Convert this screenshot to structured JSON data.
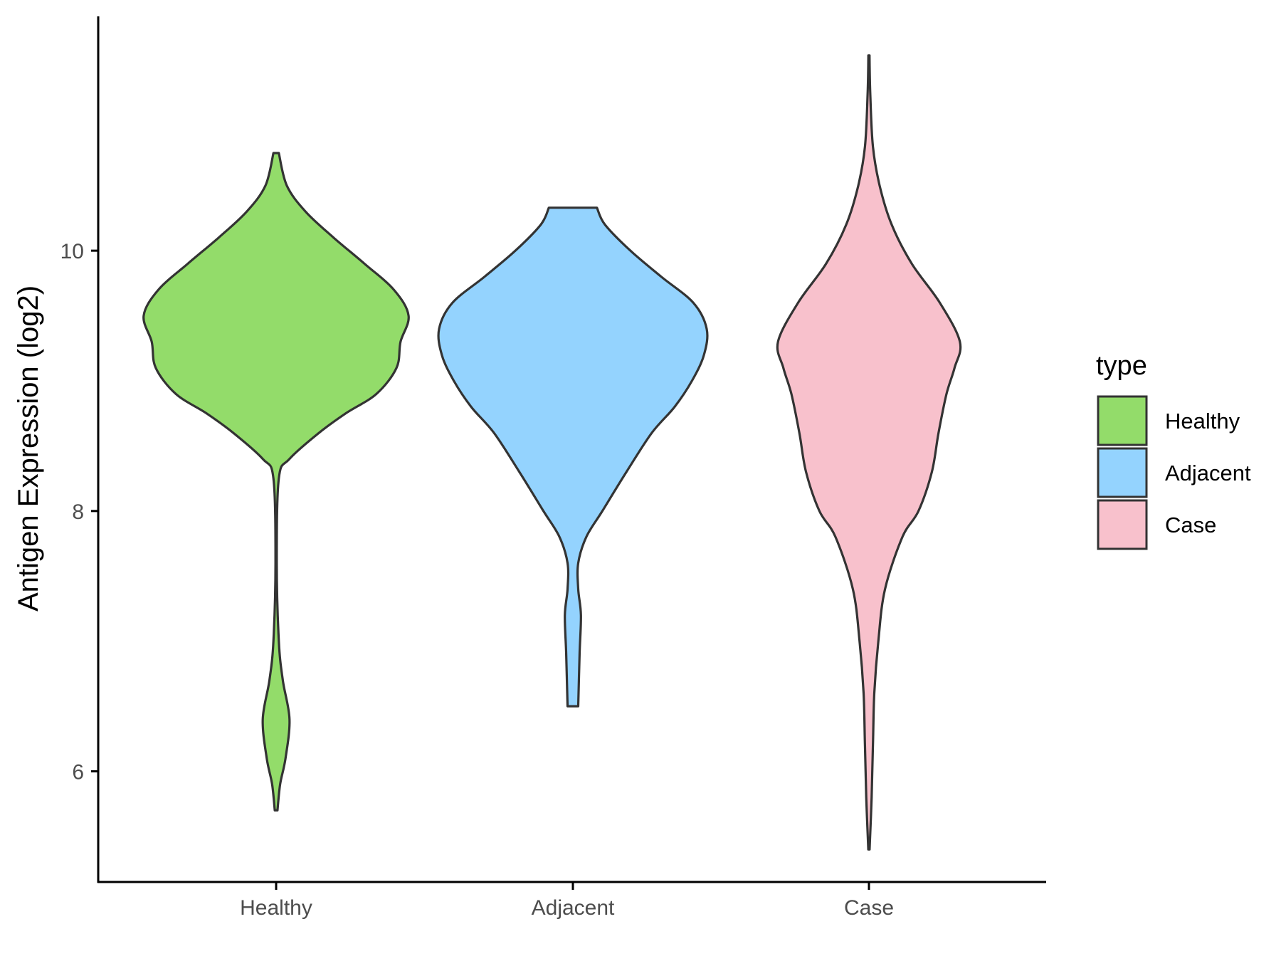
{
  "chart_data": {
    "type": "violin",
    "ylabel": "Antigen Expression (log2)",
    "xlabel": "",
    "categories": [
      "Healthy",
      "Adjacent",
      "Case"
    ],
    "y_ticks": [
      6,
      8,
      10
    ],
    "ylim": [
      5.15,
      11.8
    ],
    "legend": {
      "title": "type",
      "placement": "right",
      "entries": [
        "Healthy",
        "Adjacent",
        "Case"
      ]
    },
    "colors": {
      "Healthy": "#93dc6a",
      "Adjacent": "#94d3fe",
      "Case": "#f8c1cc",
      "outline": "#333333"
    },
    "series": [
      {
        "name": "Healthy",
        "min": 5.7,
        "max": 10.75,
        "density": [
          [
            5.7,
            0.01
          ],
          [
            5.9,
            0.03
          ],
          [
            6.1,
            0.07
          ],
          [
            6.4,
            0.1
          ],
          [
            6.7,
            0.05
          ],
          [
            7.0,
            0.02
          ],
          [
            7.6,
            0.005
          ],
          [
            8.25,
            0.02
          ],
          [
            8.4,
            0.1
          ],
          [
            8.6,
            0.32
          ],
          [
            8.75,
            0.52
          ],
          [
            8.9,
            0.75
          ],
          [
            9.1,
            0.9
          ],
          [
            9.3,
            0.93
          ],
          [
            9.5,
            0.99
          ],
          [
            9.7,
            0.88
          ],
          [
            9.9,
            0.66
          ],
          [
            10.1,
            0.43
          ],
          [
            10.3,
            0.22
          ],
          [
            10.5,
            0.08
          ],
          [
            10.75,
            0.02
          ]
        ]
      },
      {
        "name": "Adjacent",
        "min": 6.5,
        "max": 10.33,
        "density": [
          [
            6.5,
            0.04
          ],
          [
            6.9,
            0.05
          ],
          [
            7.2,
            0.06
          ],
          [
            7.4,
            0.04
          ],
          [
            7.6,
            0.04
          ],
          [
            7.8,
            0.1
          ],
          [
            8.0,
            0.22
          ],
          [
            8.3,
            0.4
          ],
          [
            8.6,
            0.59
          ],
          [
            8.8,
            0.76
          ],
          [
            9.0,
            0.89
          ],
          [
            9.2,
            0.98
          ],
          [
            9.4,
            1.0
          ],
          [
            9.6,
            0.9
          ],
          [
            9.8,
            0.66
          ],
          [
            10.0,
            0.43
          ],
          [
            10.2,
            0.24
          ],
          [
            10.33,
            0.18
          ]
        ]
      },
      {
        "name": "Case",
        "min": 5.4,
        "max": 11.5,
        "density": [
          [
            5.4,
            0.005
          ],
          [
            5.8,
            0.02
          ],
          [
            6.2,
            0.03
          ],
          [
            6.6,
            0.04
          ],
          [
            7.0,
            0.07
          ],
          [
            7.4,
            0.12
          ],
          [
            7.8,
            0.25
          ],
          [
            8.0,
            0.37
          ],
          [
            8.3,
            0.47
          ],
          [
            8.6,
            0.52
          ],
          [
            8.9,
            0.58
          ],
          [
            9.1,
            0.64
          ],
          [
            9.3,
            0.68
          ],
          [
            9.6,
            0.53
          ],
          [
            9.9,
            0.32
          ],
          [
            10.2,
            0.17
          ],
          [
            10.5,
            0.08
          ],
          [
            10.8,
            0.03
          ],
          [
            11.2,
            0.01
          ],
          [
            11.5,
            0.004
          ]
        ]
      }
    ]
  }
}
